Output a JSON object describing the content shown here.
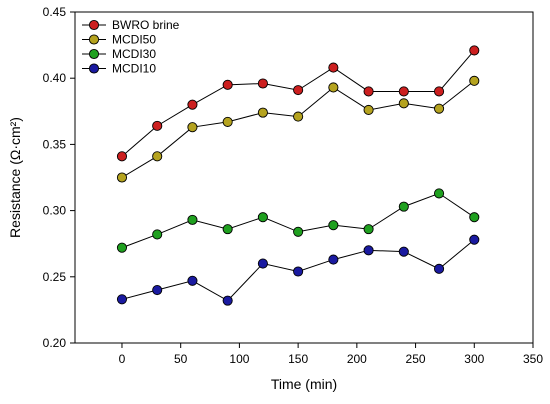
{
  "chart_data": {
    "type": "line",
    "title": "",
    "xlabel": "Time (min)",
    "ylabel": "Resistance (Ω·cm²)",
    "xlim": [
      -40,
      350
    ],
    "ylim": [
      0.2,
      0.45
    ],
    "x_ticks": [
      0,
      50,
      100,
      150,
      200,
      250,
      300,
      350
    ],
    "y_ticks": [
      0.2,
      0.25,
      0.3,
      0.35,
      0.4,
      0.45
    ],
    "x_tick_labels": [
      "0",
      "50",
      "100",
      "150",
      "200",
      "250",
      "300",
      "350"
    ],
    "y_tick_labels": [
      "0.20",
      "0.25",
      "0.30",
      "0.35",
      "0.40",
      "0.45"
    ],
    "x": [
      0,
      30,
      60,
      90,
      120,
      150,
      180,
      210,
      240,
      270,
      300
    ],
    "grid": false,
    "legend_position": "top-left",
    "series": [
      {
        "name": "BWRO brine",
        "color": "#cc1f1f",
        "values": [
          0.341,
          0.364,
          0.38,
          0.395,
          0.396,
          0.391,
          0.408,
          0.39,
          0.39,
          0.39,
          0.421
        ]
      },
      {
        "name": "MCDI50",
        "color": "#b5a31f",
        "values": [
          0.325,
          0.341,
          0.363,
          0.367,
          0.374,
          0.371,
          0.393,
          0.376,
          0.381,
          0.377,
          0.398
        ]
      },
      {
        "name": "MCDI30",
        "color": "#1fa01f",
        "values": [
          0.272,
          0.282,
          0.293,
          0.286,
          0.295,
          0.284,
          0.289,
          0.286,
          0.303,
          0.313,
          0.295
        ]
      },
      {
        "name": "MCDI10",
        "color": "#1a1aa0",
        "values": [
          0.233,
          0.24,
          0.247,
          0.232,
          0.26,
          0.254,
          0.263,
          0.27,
          0.269,
          0.256,
          0.278
        ]
      }
    ]
  }
}
